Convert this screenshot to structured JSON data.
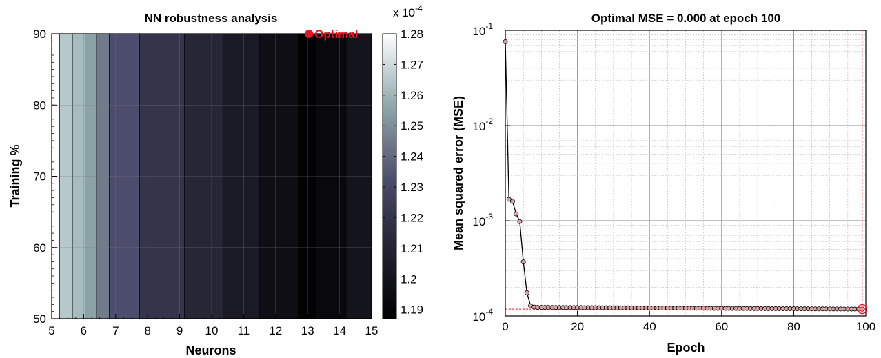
{
  "chart_data": [
    {
      "type": "heatmap",
      "title": "NN robustness analysis",
      "xlabel": "Neurons",
      "ylabel": "Training %",
      "xlim": [
        5,
        15
      ],
      "ylim": [
        50,
        90
      ],
      "x_ticks": [
        "5",
        "6",
        "7",
        "8",
        "9",
        "10",
        "11",
        "12",
        "13",
        "14",
        "15"
      ],
      "y_ticks": [
        "50",
        "60",
        "70",
        "80",
        "90"
      ],
      "grid": true,
      "bands": [
        {
          "x0": 5.0,
          "x1": 5.25,
          "value": 1.28
        },
        {
          "x0": 5.25,
          "x1": 5.65,
          "value": 1.265
        },
        {
          "x0": 5.65,
          "x1": 6.05,
          "value": 1.262
        },
        {
          "x0": 6.05,
          "x1": 6.4,
          "value": 1.255
        },
        {
          "x0": 6.4,
          "x1": 6.8,
          "value": 1.245
        },
        {
          "x0": 6.8,
          "x1": 7.75,
          "value": 1.232
        },
        {
          "x0": 7.75,
          "x1": 9.15,
          "value": 1.22
        },
        {
          "x0": 9.15,
          "x1": 10.35,
          "value": 1.212
        },
        {
          "x0": 10.35,
          "x1": 11.5,
          "value": 1.204
        },
        {
          "x0": 11.5,
          "x1": 12.7,
          "value": 1.196
        },
        {
          "x0": 12.7,
          "x1": 13.25,
          "value": 1.188
        },
        {
          "x0": 13.25,
          "x1": 14.2,
          "value": 1.193
        },
        {
          "x0": 14.2,
          "x1": 15.0,
          "value": 1.2
        }
      ],
      "colorbar": {
        "multiplier": "x 10",
        "exponent": "-4",
        "min": 1.187,
        "max": 1.28,
        "ticks": [
          "1.19",
          "1.2",
          "1.21",
          "1.22",
          "1.23",
          "1.24",
          "1.25",
          "1.26",
          "1.27",
          "1.28"
        ]
      },
      "annotation": {
        "label": "Optimal",
        "x": 13,
        "y": 90,
        "color": "#e8141e"
      }
    },
    {
      "type": "line",
      "title": "Optimal MSE = 0.000 at epoch 100",
      "xlabel": "Epoch",
      "ylabel": "Mean squared error (MSE)",
      "xlim": [
        0,
        100
      ],
      "ylim": [
        0.0001,
        0.1
      ],
      "yscale": "log",
      "x_ticks": [
        "0",
        "20",
        "40",
        "60",
        "80",
        "100"
      ],
      "y_ticks": [
        {
          "base": "10",
          "exp": "-4"
        },
        {
          "base": "10",
          "exp": "-3"
        },
        {
          "base": "10",
          "exp": "-2"
        },
        {
          "base": "10",
          "exp": "-1"
        }
      ],
      "grid": true,
      "best_epoch": 99,
      "best_value": 0.000118,
      "series": [
        {
          "values": [
            0.076,
            0.00168,
            0.0016,
            0.00118,
            0.00098,
            0.00037,
            0.000175,
            0.000128,
            0.000124,
            0.000123
          ]
        }
      ],
      "tail": {
        "start_value": 0.000123,
        "end_value": 0.000118,
        "end_epoch": 99
      },
      "colors": {
        "series_line": "#000000",
        "marker_fill": "#d9a3a3",
        "best": "#e8141e"
      }
    }
  ]
}
